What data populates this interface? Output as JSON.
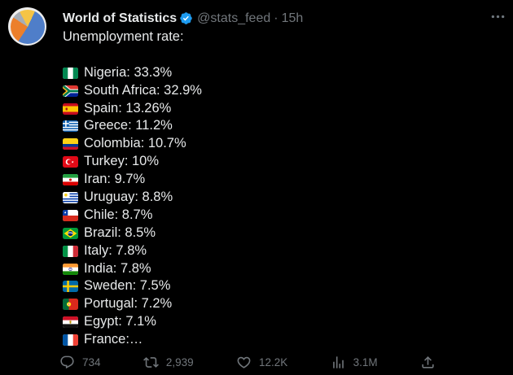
{
  "tweet": {
    "author": "World of Statistics",
    "handle": "@stats_feed",
    "separator": "·",
    "timestamp": "15h",
    "body_intro": "Unemployment rate:",
    "entries": [
      {
        "flag": "nigeria",
        "text": "Nigeria: 33.3%"
      },
      {
        "flag": "south-africa",
        "text": "South Africa: 32.9%"
      },
      {
        "flag": "spain",
        "text": "Spain: 13.26%"
      },
      {
        "flag": "greece",
        "text": "Greece: 11.2%"
      },
      {
        "flag": "colombia",
        "text": "Colombia: 10.7%"
      },
      {
        "flag": "turkey",
        "text": "Turkey: 10%"
      },
      {
        "flag": "iran",
        "text": "Iran: 9.7%"
      },
      {
        "flag": "uruguay",
        "text": "Uruguay: 8.8%"
      },
      {
        "flag": "chile",
        "text": "Chile: 8.7%"
      },
      {
        "flag": "brazil",
        "text": "Brazil: 8.5%"
      },
      {
        "flag": "italy",
        "text": "Italy: 7.8%"
      },
      {
        "flag": "india",
        "text": "India: 7.8%"
      },
      {
        "flag": "sweden",
        "text": "Sweden: 7.5%"
      },
      {
        "flag": "portugal",
        "text": "Portugal: 7.2%"
      },
      {
        "flag": "egypt",
        "text": "Egypt: 7.1%"
      },
      {
        "flag": "france",
        "text": "France:…"
      }
    ],
    "actions": [
      {
        "name": "reply",
        "icon": "reply-icon",
        "count": "734"
      },
      {
        "name": "repost",
        "icon": "repost-icon",
        "count": "2,939"
      },
      {
        "name": "like",
        "icon": "like-icon",
        "count": "12.2K"
      },
      {
        "name": "views",
        "icon": "views-icon",
        "count": "3.1M"
      },
      {
        "name": "share",
        "icon": "share-icon",
        "count": ""
      }
    ]
  },
  "colors": {
    "background": "#000000",
    "text": "#e7e9ea",
    "muted": "#71767b",
    "verified_blue": "#1d9bf0",
    "avatar_pie": [
      "#4f7ec9",
      "#ec7f2b",
      "#a7adb5",
      "#f6c445"
    ]
  }
}
